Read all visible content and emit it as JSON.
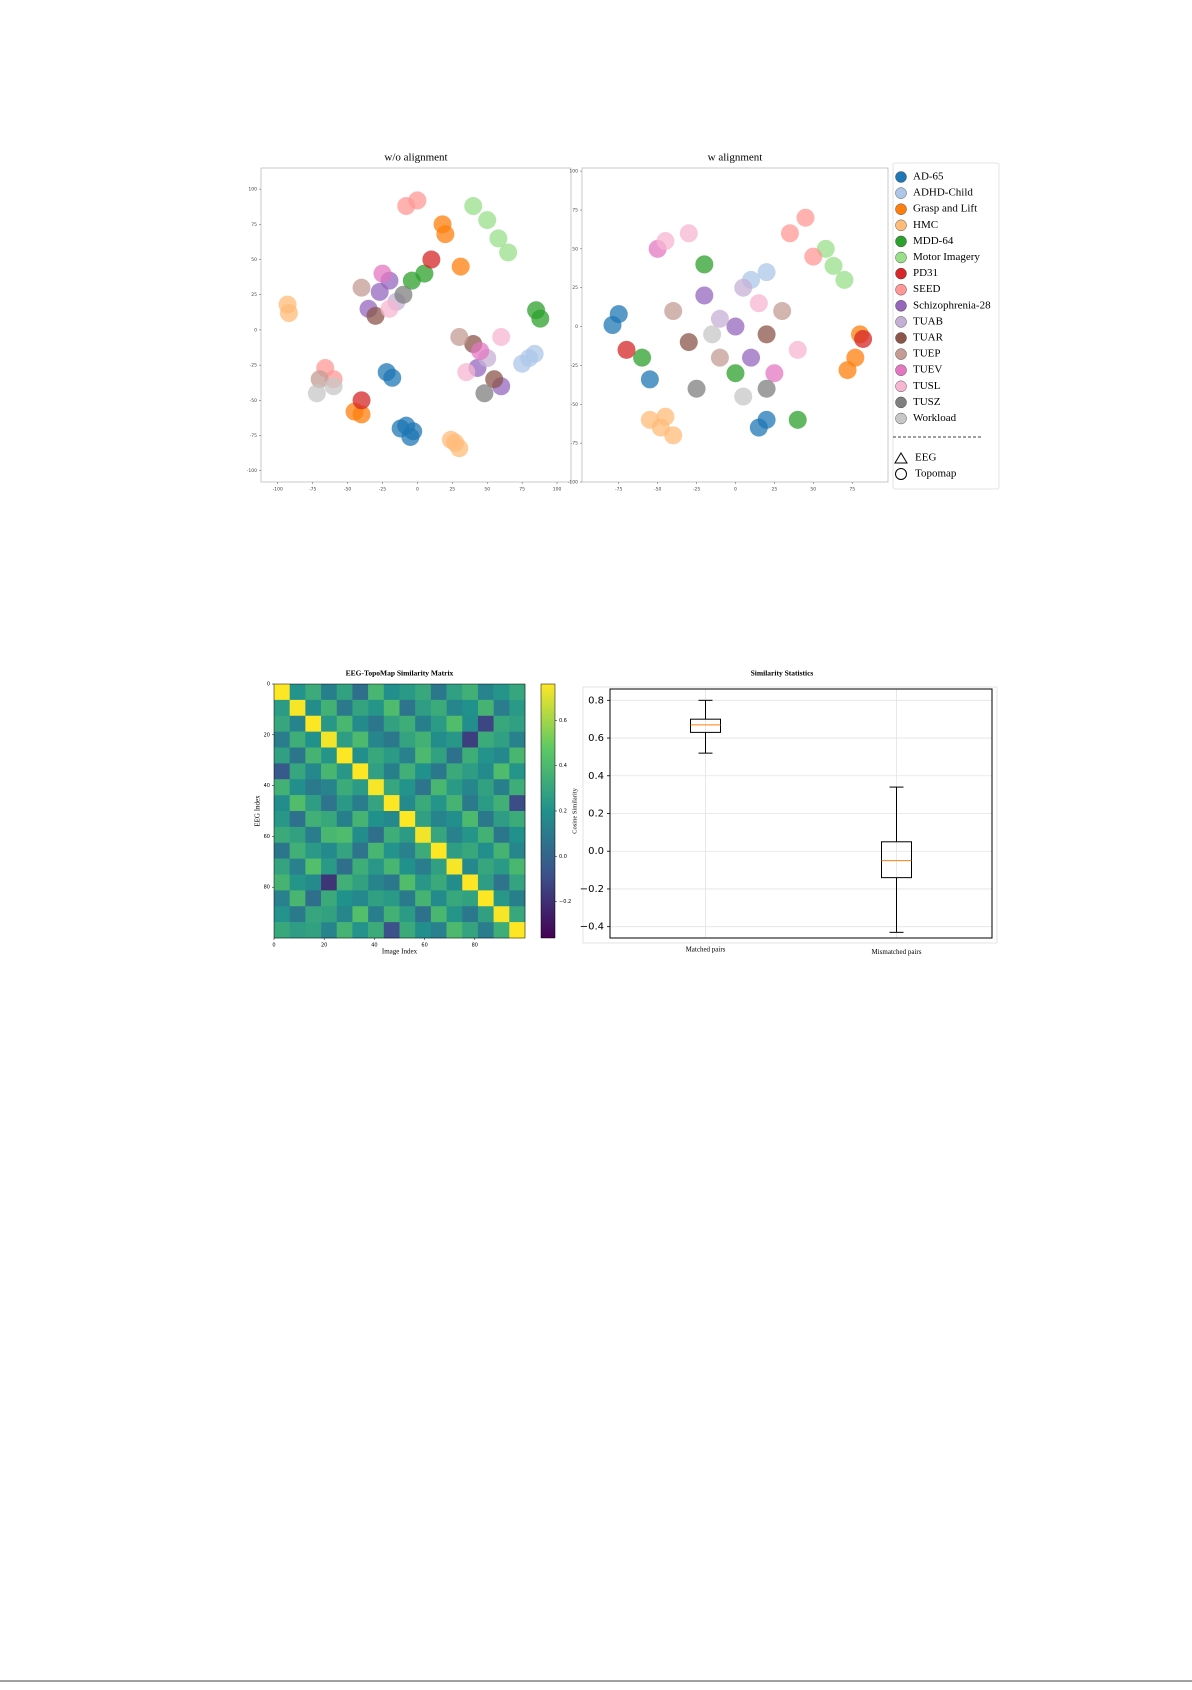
{
  "chart_data": [
    {
      "type": "scatter",
      "title": "w/o alignment",
      "xlim": [
        -112,
        110
      ],
      "ylim": [
        -108,
        115
      ],
      "xticks": [
        -100,
        -75,
        -50,
        -25,
        0,
        25,
        50,
        75,
        100
      ],
      "yticks": [
        -100,
        -75,
        -50,
        -25,
        0,
        25,
        50,
        75,
        100
      ],
      "series": [
        {
          "name": "AD-65",
          "color": "#1f77b4",
          "x": [
            -12,
            -5,
            -8,
            -3,
            -22,
            -18
          ],
          "y": [
            -70,
            -76,
            -68,
            -72,
            -30,
            -34
          ]
        },
        {
          "name": "ADHD-Child",
          "color": "#aec7e8",
          "x": [
            80,
            84,
            75
          ],
          "y": [
            -20,
            -17,
            -24
          ]
        },
        {
          "name": "Grasp and Lift",
          "color": "#ff7f0e",
          "x": [
            18,
            20,
            31,
            -45,
            -40
          ],
          "y": [
            75,
            68,
            45,
            -58,
            -60
          ]
        },
        {
          "name": "HMC",
          "color": "#ffbb78",
          "x": [
            -93,
            -92,
            27,
            30,
            24
          ],
          "y": [
            18,
            12,
            -80,
            -84,
            -78
          ]
        },
        {
          "name": "MDD-64",
          "color": "#2ca02c",
          "x": [
            85,
            88,
            -4,
            5
          ],
          "y": [
            14,
            8,
            35,
            40
          ]
        },
        {
          "name": "Motor Imagery",
          "color": "#98df8a",
          "x": [
            58,
            40,
            50,
            65
          ],
          "y": [
            65,
            88,
            78,
            55
          ]
        },
        {
          "name": "PD31",
          "color": "#d62728",
          "x": [
            -40,
            10
          ],
          "y": [
            -50,
            50
          ]
        },
        {
          "name": "SEED",
          "color": "#ff9896",
          "x": [
            -66,
            -60,
            -8,
            0
          ],
          "y": [
            -27,
            -35,
            88,
            92
          ]
        },
        {
          "name": "Schizophrenia-28",
          "color": "#9467bd",
          "x": [
            -27,
            -20,
            43,
            60,
            -35
          ],
          "y": [
            27,
            35,
            -27,
            -40,
            15
          ]
        },
        {
          "name": "TUAB",
          "color": "#c5b0d5",
          "x": [
            -15,
            50
          ],
          "y": [
            20,
            -20
          ]
        },
        {
          "name": "TUAR",
          "color": "#8c564b",
          "x": [
            -30,
            40,
            55
          ],
          "y": [
            10,
            -10,
            -35
          ]
        },
        {
          "name": "TUEP",
          "color": "#c49c94",
          "x": [
            -40,
            30,
            -70
          ],
          "y": [
            30,
            -5,
            -35
          ]
        },
        {
          "name": "TUEV",
          "color": "#e377c2",
          "x": [
            -25,
            45
          ],
          "y": [
            40,
            -15
          ]
        },
        {
          "name": "TUSL",
          "color": "#f7b6d2",
          "x": [
            -20,
            35,
            60
          ],
          "y": [
            15,
            -30,
            -5
          ]
        },
        {
          "name": "TUSZ",
          "color": "#7f7f7f",
          "x": [
            -10,
            48
          ],
          "y": [
            25,
            -45
          ]
        },
        {
          "name": "Workload",
          "color": "#c7c7c7",
          "x": [
            -72,
            -60
          ],
          "y": [
            -45,
            -40
          ]
        }
      ]
    },
    {
      "type": "scatter",
      "title": "w alignment",
      "xlim": [
        -98.6,
        98
      ],
      "ylim": [
        -100,
        102
      ],
      "xticks": [
        -75,
        -50,
        -25,
        0,
        25,
        50,
        75
      ],
      "yticks": [
        -100,
        -75,
        -50,
        -25,
        0,
        25,
        50,
        75,
        100
      ],
      "legend": "right",
      "marker_legend": [
        "EEG",
        "Topomap"
      ],
      "series": [
        {
          "name": "AD-65",
          "color": "#1f77b4",
          "x": [
            -79,
            -75,
            15,
            20,
            -55
          ],
          "y": [
            1,
            8,
            -65,
            -60,
            -34
          ]
        },
        {
          "name": "ADHD-Child",
          "color": "#aec7e8",
          "x": [
            20,
            10
          ],
          "y": [
            35,
            30
          ]
        },
        {
          "name": "Grasp and Lift",
          "color": "#ff7f0e",
          "x": [
            77,
            80,
            72
          ],
          "y": [
            -20,
            -5,
            -28
          ]
        },
        {
          "name": "HMC",
          "color": "#ffbb78",
          "x": [
            -48,
            -40,
            -55,
            -45
          ],
          "y": [
            -65,
            -70,
            -60,
            -58
          ]
        },
        {
          "name": "MDD-64",
          "color": "#2ca02c",
          "x": [
            -20,
            -60,
            40,
            0
          ],
          "y": [
            40,
            -20,
            -60,
            -30
          ]
        },
        {
          "name": "Motor Imagery",
          "color": "#98df8a",
          "x": [
            63,
            70,
            58
          ],
          "y": [
            39,
            30,
            50
          ]
        },
        {
          "name": "PD31",
          "color": "#d62728",
          "x": [
            82,
            -70
          ],
          "y": [
            -8,
            -15
          ]
        },
        {
          "name": "SEED",
          "color": "#ff9896",
          "x": [
            35,
            45,
            50
          ],
          "y": [
            60,
            70,
            45
          ]
        },
        {
          "name": "Schizophrenia-28",
          "color": "#9467bd",
          "x": [
            -20,
            0,
            10
          ],
          "y": [
            20,
            0,
            -20
          ]
        },
        {
          "name": "TUAB",
          "color": "#c5b0d5",
          "x": [
            5,
            -10
          ],
          "y": [
            25,
            5
          ]
        },
        {
          "name": "TUAR",
          "color": "#8c564b",
          "x": [
            -30,
            20
          ],
          "y": [
            -10,
            -5
          ]
        },
        {
          "name": "TUEP",
          "color": "#c49c94",
          "x": [
            -40,
            30,
            -10
          ],
          "y": [
            10,
            10,
            -20
          ]
        },
        {
          "name": "TUEV",
          "color": "#e377c2",
          "x": [
            -50,
            25
          ],
          "y": [
            50,
            -30
          ]
        },
        {
          "name": "TUSL",
          "color": "#f7b6d2",
          "x": [
            -45,
            15,
            -30,
            40
          ],
          "y": [
            55,
            15,
            60,
            -15
          ]
        },
        {
          "name": "TUSZ",
          "color": "#7f7f7f",
          "x": [
            -25,
            20
          ],
          "y": [
            -40,
            -40
          ]
        },
        {
          "name": "Workload",
          "color": "#c7c7c7",
          "x": [
            -15,
            5
          ],
          "y": [
            -5,
            -45
          ]
        }
      ]
    },
    {
      "type": "heatmap",
      "title": "EEG-TopoMap Similarity Matrix",
      "x_label": "Image Index",
      "y_label": "EEG Index",
      "colorbar_label": "Cosine Similarity",
      "colormap": "viridis",
      "y_inverted": true,
      "xlim": [
        0,
        100
      ],
      "ylim": [
        0,
        100
      ],
      "xticks": [
        0,
        20,
        40,
        60,
        80
      ],
      "yticks": [
        0,
        20,
        40,
        60,
        80
      ],
      "clim": [
        -0.36,
        0.76
      ],
      "cticks": [
        {
          "value": -0.2,
          "label": "−0.2"
        },
        {
          "value": 0,
          "label": "0.0"
        },
        0.2,
        0.4,
        0.6
      ],
      "z": [
        [
          0.76,
          0.21,
          0.33,
          0.12,
          0.28,
          0.05,
          0.38,
          0.19,
          0.24,
          0.31,
          0.09,
          0.27,
          0.35,
          0.14,
          0.22,
          0.3
        ],
        [
          0.25,
          0.75,
          0.18,
          0.36,
          0.1,
          0.29,
          0.22,
          0.41,
          0.07,
          0.26,
          0.33,
          0.15,
          0.2,
          0.37,
          0.11,
          0.24
        ],
        [
          0.3,
          0.14,
          0.77,
          0.23,
          0.39,
          0.17,
          0.08,
          0.28,
          0.34,
          0.12,
          0.25,
          0.42,
          0.19,
          -0.12,
          0.31,
          0.27
        ],
        [
          0.11,
          0.34,
          0.2,
          0.74,
          0.26,
          0.4,
          0.15,
          0.09,
          0.29,
          0.36,
          0.18,
          0.23,
          -0.15,
          0.33,
          0.27,
          0.13
        ],
        [
          0.27,
          0.08,
          0.37,
          0.22,
          0.76,
          0.19,
          0.31,
          0.25,
          0.13,
          0.4,
          0.28,
          0.06,
          0.34,
          0.21,
          0.16,
          0.38
        ],
        [
          -0.05,
          0.3,
          0.16,
          0.38,
          0.23,
          0.78,
          0.27,
          0.12,
          0.35,
          0.2,
          0.09,
          0.32,
          0.26,
          0.17,
          0.41,
          0.22
        ],
        [
          0.36,
          0.19,
          0.1,
          0.14,
          0.33,
          0.25,
          0.75,
          0.3,
          0.21,
          0.07,
          0.39,
          0.24,
          0.15,
          0.28,
          0.12,
          0.34
        ],
        [
          0.18,
          0.42,
          0.26,
          0.07,
          0.24,
          0.11,
          0.29,
          0.76,
          0.17,
          0.32,
          0.22,
          0.37,
          0.1,
          0.25,
          0.35,
          -0.1
        ],
        [
          0.23,
          0.06,
          0.35,
          0.31,
          0.12,
          0.37,
          0.2,
          0.16,
          0.77,
          0.27,
          0.14,
          0.19,
          0.4,
          0.09,
          0.26,
          0.33
        ],
        [
          0.32,
          0.28,
          0.11,
          0.39,
          0.41,
          0.18,
          0.05,
          0.34,
          0.25,
          0.74,
          0.3,
          0.13,
          0.22,
          0.36,
          0.08,
          0.2
        ],
        [
          0.08,
          0.35,
          0.24,
          0.17,
          0.29,
          0.07,
          0.38,
          0.21,
          0.13,
          0.33,
          0.76,
          0.26,
          0.31,
          0.19,
          0.37,
          0.15
        ],
        [
          0.29,
          0.13,
          0.43,
          0.24,
          0.05,
          0.34,
          0.23,
          0.38,
          0.2,
          0.11,
          0.27,
          0.75,
          0.16,
          0.3,
          0.24,
          0.39
        ],
        [
          0.37,
          0.22,
          0.17,
          -0.18,
          0.35,
          0.28,
          0.14,
          0.09,
          0.42,
          0.23,
          0.32,
          0.18,
          0.77,
          0.26,
          0.07,
          0.29
        ],
        [
          0.13,
          0.38,
          0.05,
          0.32,
          0.2,
          0.16,
          0.27,
          0.24,
          0.1,
          0.37,
          0.17,
          0.31,
          0.28,
          0.76,
          0.23,
          0.12
        ],
        [
          0.21,
          0.1,
          0.3,
          0.28,
          0.15,
          0.43,
          0.11,
          0.36,
          0.25,
          0.06,
          0.39,
          0.22,
          0.09,
          0.27,
          0.75,
          0.31
        ],
        [
          0.31,
          0.26,
          0.28,
          0.14,
          0.37,
          0.21,
          0.33,
          -0.08,
          0.32,
          0.19,
          0.13,
          0.4,
          0.29,
          0.11,
          0.34,
          0.78
        ]
      ]
    },
    {
      "type": "box",
      "title": "Similarity Statistics",
      "categories": [
        "Matched pairs",
        "Mismatched pairs"
      ],
      "ylim": [
        -0.46,
        0.86
      ],
      "grid": true,
      "median_color": "#ff7f0e",
      "yticks": [
        {
          "value": -0.4,
          "label": "−0.4"
        },
        {
          "value": -0.2,
          "label": "−0.2"
        },
        {
          "value": 0,
          "label": "0.0"
        },
        0.2,
        0.4,
        0.6,
        0.8
      ],
      "boxes": [
        {
          "min": 0.52,
          "q1": 0.63,
          "median": 0.67,
          "q3": 0.7,
          "max": 0.8
        },
        {
          "min": -0.43,
          "q1": -0.14,
          "median": -0.05,
          "q3": 0.05,
          "max": 0.34
        }
      ]
    }
  ]
}
